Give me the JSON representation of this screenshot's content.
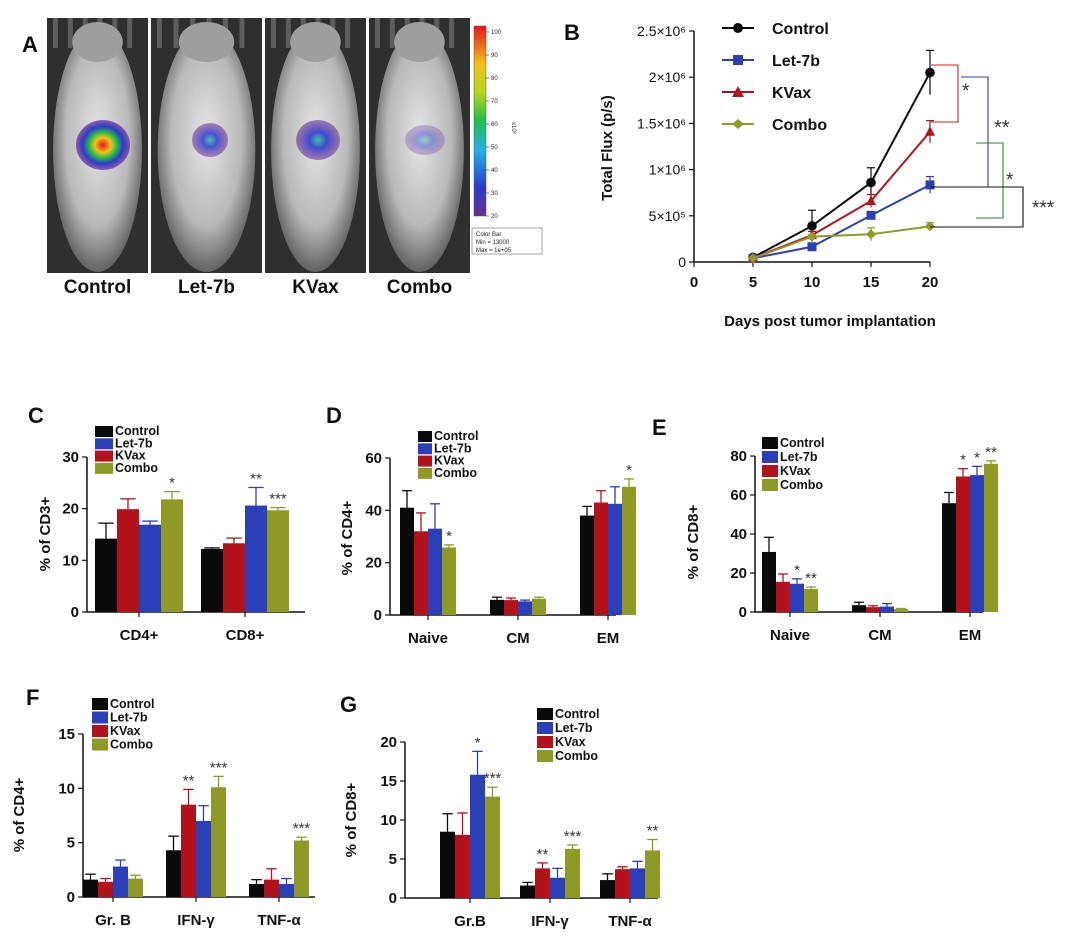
{
  "panel_labels": {
    "A": "A",
    "B": "B",
    "C": "C",
    "D": "D",
    "E": "E",
    "F": "F",
    "G": "G"
  },
  "colors": {
    "Control": "#0a0a0a",
    "Let-7b": "#2b3fb8",
    "KVax": "#b3121b",
    "Combo": "#8f9a26"
  },
  "panelA": {
    "mouse_labels": [
      "Control",
      "Let-7b",
      "KVax",
      "Combo"
    ],
    "colorbar_ticks": [
      "100",
      "90",
      "80",
      "70",
      "60",
      "50",
      "40",
      "30",
      "20"
    ],
    "colorbar_exponent": "x10³",
    "colorbar_box": [
      "Color Bar",
      "Min = 13000",
      "Max = 1e+05"
    ]
  },
  "chart_data": [
    {
      "panel": "B",
      "type": "line",
      "xlabel": "Days post tumor implantation",
      "ylabel": "Total  Flux (p/s)",
      "x": [
        5,
        10,
        15,
        20
      ],
      "xticks": [
        "0",
        "5",
        "10",
        "15",
        "20"
      ],
      "yticks": [
        "0",
        "5×10⁵",
        "1×10⁶",
        "1.5×10⁶",
        "2×10⁶",
        "2.5×10⁶"
      ],
      "ylim": [
        0,
        2500000
      ],
      "xlim": [
        0,
        20
      ],
      "series": [
        {
          "name": "Control",
          "values": [
            50000,
            390000,
            860000,
            2050000
          ],
          "err": [
            10000,
            170000,
            160000,
            240000
          ]
        },
        {
          "name": "Let-7b",
          "values": [
            40000,
            165000,
            505000,
            835000
          ],
          "err": [
            10000,
            30000,
            40000,
            90000
          ]
        },
        {
          "name": "KVax",
          "values": [
            45000,
            290000,
            660000,
            1410000
          ],
          "err": [
            10000,
            40000,
            70000,
            120000
          ]
        },
        {
          "name": "Combo",
          "values": [
            40000,
            275000,
            300000,
            385000
          ],
          "err": [
            10000,
            20000,
            70000,
            40000
          ]
        }
      ],
      "significance": [
        {
          "label": "*",
          "color": "#d21f26"
        },
        {
          "label": "**",
          "color": "#2b3fb8"
        },
        {
          "label": "*",
          "color": "#2a8a2a"
        },
        {
          "label": "***",
          "color": "#111111"
        }
      ]
    },
    {
      "panel": "C",
      "type": "bar",
      "ylabel": "% of CD3+",
      "ylim": [
        0,
        30
      ],
      "yticks": [
        "0",
        "10",
        "20",
        "30"
      ],
      "categories": [
        "CD4+",
        "CD8+"
      ],
      "series_order": [
        "Control",
        "KVax",
        "Let-7b",
        "Combo"
      ],
      "series": [
        {
          "name": "Control",
          "values": [
            14.2,
            12.2
          ],
          "err": [
            3.0,
            0.2
          ]
        },
        {
          "name": "KVax",
          "values": [
            19.9,
            13.3
          ],
          "err": [
            2.0,
            1.0
          ]
        },
        {
          "name": "Let-7b",
          "values": [
            16.9,
            20.6
          ],
          "err": [
            0.7,
            3.5
          ]
        },
        {
          "name": "Combo",
          "values": [
            21.8,
            19.7
          ],
          "err": [
            1.5,
            0.5
          ]
        }
      ],
      "stars": [
        [
          "",
          "",
          "",
          "*"
        ],
        [
          "",
          "",
          "**",
          "***"
        ]
      ]
    },
    {
      "panel": "D",
      "type": "bar",
      "ylabel": "% of CD4+",
      "ylim": [
        0,
        60
      ],
      "yticks": [
        "0",
        "20",
        "40",
        "60"
      ],
      "categories": [
        "Naive",
        "CM",
        "EM"
      ],
      "series_order": [
        "Control",
        "KVax",
        "Let-7b",
        "Combo"
      ],
      "series": [
        {
          "name": "Control",
          "values": [
            41.0,
            5.8,
            38.0
          ],
          "err": [
            6.5,
            1.0,
            3.5
          ]
        },
        {
          "name": "KVax",
          "values": [
            32.0,
            5.7,
            43.0
          ],
          "err": [
            7.0,
            0.8,
            4.5
          ]
        },
        {
          "name": "Let-7b",
          "values": [
            33.0,
            5.2,
            42.5
          ],
          "err": [
            9.5,
            0.5,
            6.5
          ]
        },
        {
          "name": "Combo",
          "values": [
            25.8,
            6.2,
            49.0
          ],
          "err": [
            1.0,
            0.6,
            3.0
          ]
        }
      ],
      "stars": [
        [
          "",
          "",
          "",
          "*"
        ],
        [
          "",
          "",
          "",
          ""
        ],
        [
          "",
          "",
          "",
          "*"
        ]
      ]
    },
    {
      "panel": "E",
      "type": "bar",
      "ylabel": "% of CD8+",
      "ylim": [
        0,
        80
      ],
      "yticks": [
        "0",
        "20",
        "40",
        "60",
        "80"
      ],
      "categories": [
        "Naive",
        "CM",
        "EM"
      ],
      "series_order": [
        "Control",
        "KVax",
        "Let-7b",
        "Combo"
      ],
      "series": [
        {
          "name": "Control",
          "values": [
            30.8,
            3.5,
            55.8
          ],
          "err": [
            7.5,
            1.5,
            5.5
          ]
        },
        {
          "name": "KVax",
          "values": [
            15.5,
            2.5,
            69.5
          ],
          "err": [
            4.0,
            0.7,
            4.0
          ]
        },
        {
          "name": "Let-7b",
          "values": [
            14.5,
            2.8,
            70.2
          ],
          "err": [
            2.5,
            1.5,
            4.5
          ]
        },
        {
          "name": "Combo",
          "values": [
            11.8,
            1.5,
            76.0
          ],
          "err": [
            1.0,
            0.3,
            1.5
          ]
        }
      ],
      "stars": [
        [
          "",
          "",
          "*",
          "**"
        ],
        [
          "",
          "",
          "",
          ""
        ],
        [
          "",
          "*",
          "*",
          "**"
        ]
      ]
    },
    {
      "panel": "F",
      "type": "bar",
      "ylabel": "% of CD4+",
      "ylim": [
        0,
        15
      ],
      "yticks": [
        "0",
        "5",
        "10",
        "15"
      ],
      "categories": [
        "Gr. B",
        "IFN-γ",
        "TNF-α"
      ],
      "series_order": [
        "Control",
        "KVax",
        "Let-7b",
        "Combo"
      ],
      "series": [
        {
          "name": "Control",
          "values": [
            1.6,
            4.3,
            1.2
          ],
          "err": [
            0.5,
            1.3,
            0.4
          ]
        },
        {
          "name": "KVax",
          "values": [
            1.4,
            8.5,
            1.6
          ],
          "err": [
            0.3,
            1.4,
            1.0
          ]
        },
        {
          "name": "Let-7b",
          "values": [
            2.8,
            7.0,
            1.2
          ],
          "err": [
            0.6,
            1.4,
            0.5
          ]
        },
        {
          "name": "Combo",
          "values": [
            1.7,
            10.1,
            5.2
          ],
          "err": [
            0.3,
            1.0,
            0.3
          ]
        }
      ],
      "stars": [
        [
          "",
          "",
          "",
          ""
        ],
        [
          "",
          "**",
          "",
          "***"
        ],
        [
          "",
          "",
          "",
          "***"
        ]
      ]
    },
    {
      "panel": "G",
      "type": "bar",
      "ylabel": "% of CD8+",
      "ylim": [
        0,
        20
      ],
      "yticks": [
        "0",
        "5",
        "10",
        "15",
        "20"
      ],
      "categories": [
        "Gr.B",
        "IFN-γ",
        "TNF-α"
      ],
      "series_order": [
        "Control",
        "KVax",
        "Let-7b",
        "Combo"
      ],
      "series": [
        {
          "name": "Control",
          "values": [
            8.5,
            1.6,
            2.3
          ],
          "err": [
            2.3,
            0.4,
            0.8
          ]
        },
        {
          "name": "KVax",
          "values": [
            8.1,
            3.8,
            3.7
          ],
          "err": [
            2.8,
            0.7,
            0.3
          ]
        },
        {
          "name": "Let-7b",
          "values": [
            15.8,
            2.6,
            3.8
          ],
          "err": [
            3.0,
            1.2,
            0.9
          ]
        },
        {
          "name": "Combo",
          "values": [
            13.0,
            6.3,
            6.1
          ],
          "err": [
            1.2,
            0.5,
            1.4
          ]
        }
      ],
      "stars": [
        [
          "",
          "",
          "*",
          "***"
        ],
        [
          "",
          "**",
          "",
          "***"
        ],
        [
          "",
          "",
          "",
          "**"
        ]
      ]
    }
  ]
}
